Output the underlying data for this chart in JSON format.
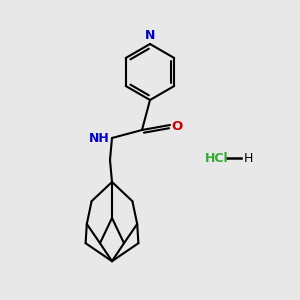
{
  "background_color": "#e8e8e8",
  "bond_color": "#000000",
  "N_color": "#0000cc",
  "O_color": "#cc0000",
  "Cl_color": "#33aa33",
  "line_width": 1.5,
  "HCl_text": "HCl",
  "H_text": "H",
  "NH_text": "NH",
  "O_text": "O",
  "N_text": "N"
}
